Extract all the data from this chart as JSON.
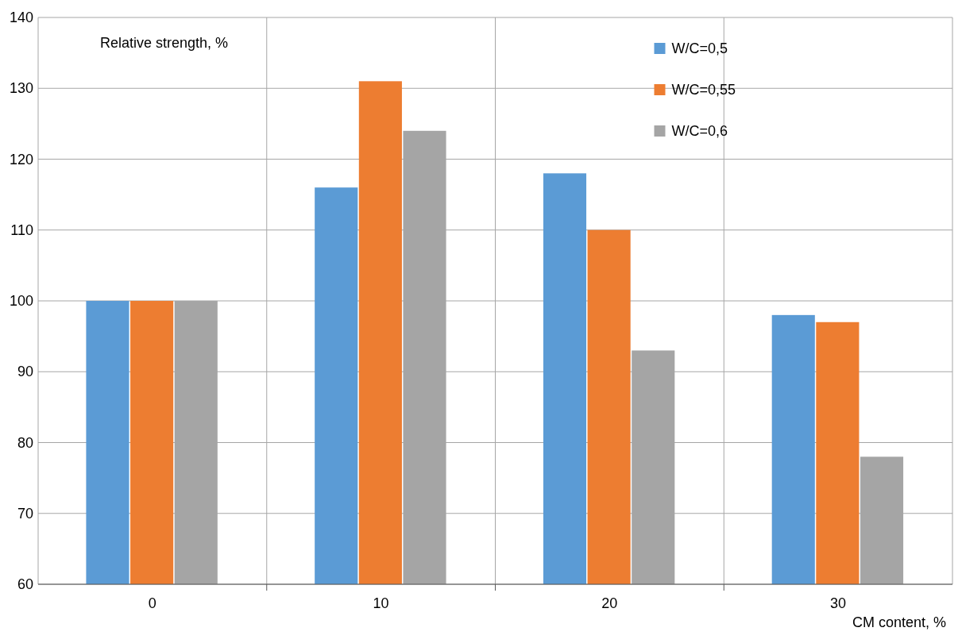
{
  "chart_data": {
    "type": "bar",
    "xlabel": "CM content, %",
    "ylabel": "Relative strength, %",
    "categories": [
      "0",
      "10",
      "20",
      "30"
    ],
    "series": [
      {
        "name": "W/C=0,5",
        "color": "#5b9bd5",
        "values": [
          100,
          116,
          118,
          98
        ]
      },
      {
        "name": "W/C=0,55",
        "color": "#ed7d31",
        "values": [
          100,
          131,
          110,
          97
        ]
      },
      {
        "name": "W/C=0,6",
        "color": "#a5a5a5",
        "values": [
          100,
          124,
          93,
          78
        ]
      }
    ],
    "ylim": [
      60,
      140
    ],
    "yticks": [
      60,
      70,
      80,
      90,
      100,
      110,
      120,
      130,
      140
    ],
    "grid": true,
    "legend": "top right"
  }
}
